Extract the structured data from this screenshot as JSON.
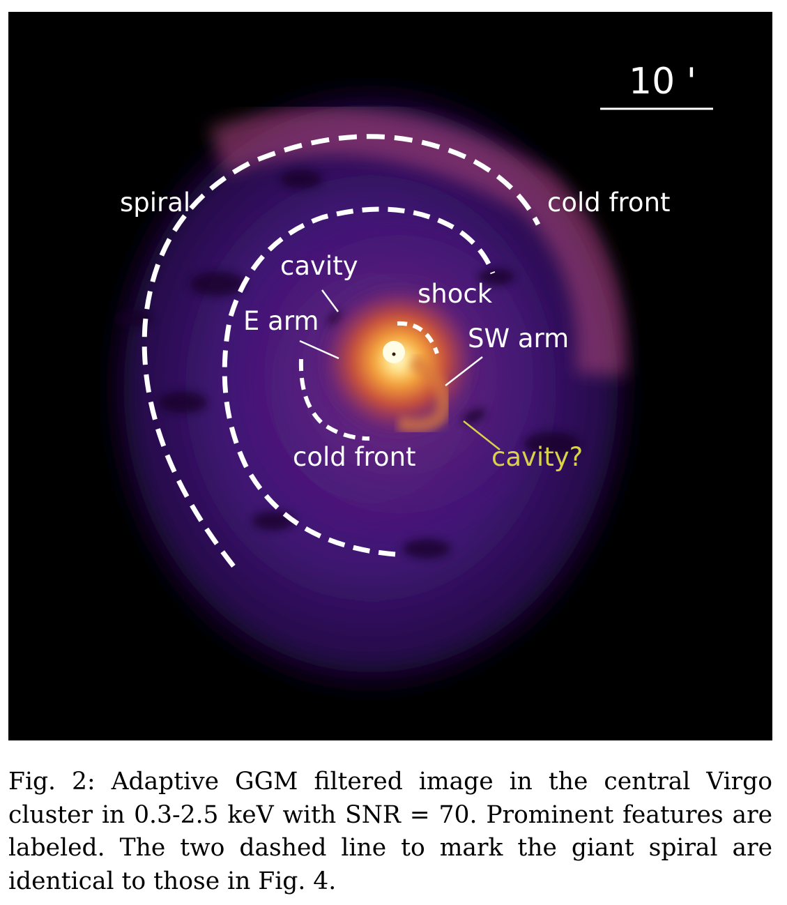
{
  "figure": {
    "scale_bar_label": "10 '",
    "labels": {
      "spiral": "spiral",
      "cold_front_outer": "cold front",
      "cavity": "cavity",
      "shock": "shock",
      "e_arm": "E arm",
      "sw_arm": "SW arm",
      "cold_front_inner": "cold front",
      "cavity_question": "cavity?"
    },
    "colors": {
      "background": "#000000",
      "halo": "#3b1670",
      "core": "#fff4b0",
      "annotation": "#ffffff",
      "uncertain_annotation": "#d9d24a"
    }
  },
  "caption": {
    "text": "Fig. 2: Adaptive GGM filtered image in the central Virgo cluster in 0.3-2.5 keV with SNR = 70. Prominent features are labeled. The two dashed line to mark the giant spiral are identical to those in Fig. 4."
  }
}
